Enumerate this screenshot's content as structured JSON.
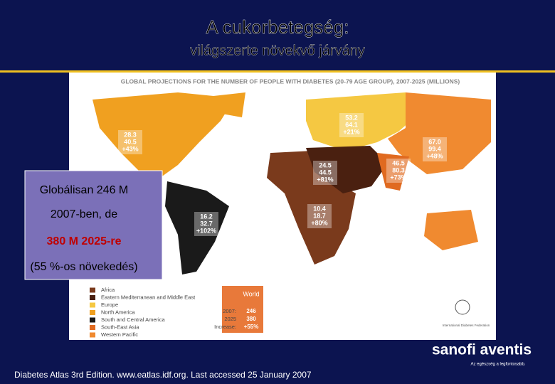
{
  "header": {
    "title": "A cukorbetegség:",
    "subtitle": "világszerte növekvő járvány"
  },
  "map": {
    "title": "GLOBAL PROJECTIONS FOR THE NUMBER OF PEOPLE WITH DIABETES (20-79 AGE GROUP), 2007-2025 (MILLIONS)",
    "regions": [
      {
        "y2007": "28.3",
        "y2025": "40.5",
        "increase": "+43%"
      },
      {
        "y2007": "53.2",
        "y2025": "64.1",
        "increase": "+21%"
      },
      {
        "y2007": "67.0",
        "y2025": "99.4",
        "increase": "+48%"
      },
      {
        "y2007": "24.5",
        "y2025": "44.5",
        "increase": "+81%"
      },
      {
        "y2007": "46.5",
        "y2025": "80.3",
        "increase": "+73%"
      },
      {
        "y2007": "10.4",
        "y2025": "18.7",
        "increase": "+80%"
      },
      {
        "y2007": "16.2",
        "y2025": "32.7",
        "increase": "+102%"
      }
    ],
    "legend": [
      "Africa",
      "Eastern Mediterranean and Middle East",
      "Europe",
      "North America",
      "South and Central America",
      "South-East Asia",
      "Western Pacific"
    ],
    "world": {
      "title": "World",
      "row_labels": [
        "2007:",
        "2025",
        "Increase:"
      ],
      "values": [
        "246",
        "380",
        "+55%"
      ]
    },
    "idf": "International Diabetes Federation"
  },
  "callout": {
    "lines": [
      "Globálisan 246 M",
      "2007-ben, de",
      "380 M 2025-re",
      "(55 %-os növekedés)"
    ]
  },
  "footer": {
    "source": "Diabetes Atlas 3rd Edition. www.eatlas.idf.org. Last accessed 25 January 2007",
    "logo": "sanofi aventis",
    "slogan": "Az egészség a legfontosabb."
  }
}
